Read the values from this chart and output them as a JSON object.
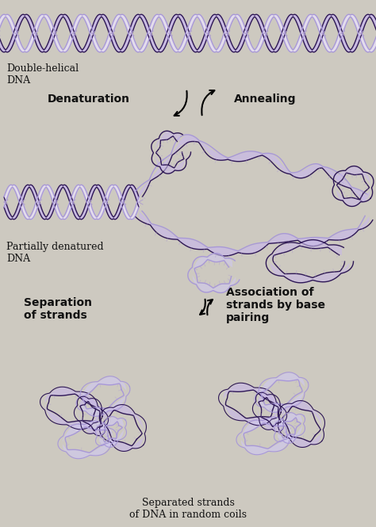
{
  "background_color": "#cdc9c0",
  "labels": {
    "double_helical": "Double-helical\nDNA",
    "denaturation": "Denaturation",
    "annealing": "Annealing",
    "partially_denatured": "Partially denatured\nDNA",
    "separation": "Separation\nof strands",
    "association": "Association of\nstrands by base\npairing",
    "separated_strands": "Separated strands\nof DNA in random coils"
  },
  "helix_color_dark": "#2d1655",
  "helix_color_light": "#a898d8",
  "helix_color_fill": "#c8b8e8",
  "helix_color_mid": "#7060a8",
  "text_color": "#111111",
  "tick_color": "#b0a0d0"
}
